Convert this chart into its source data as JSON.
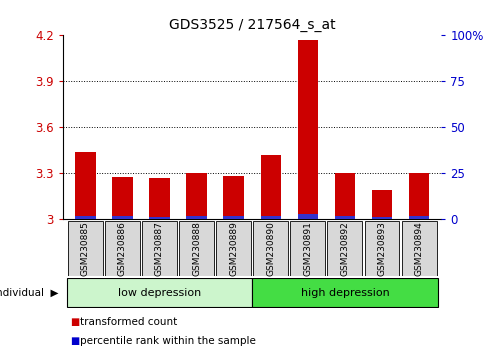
{
  "title": "GDS3525 / 217564_s_at",
  "categories": [
    "GSM230885",
    "GSM230886",
    "GSM230887",
    "GSM230888",
    "GSM230889",
    "GSM230890",
    "GSM230891",
    "GSM230892",
    "GSM230893",
    "GSM230894"
  ],
  "red_values": [
    3.44,
    3.28,
    3.27,
    3.3,
    3.285,
    3.42,
    4.17,
    3.305,
    3.19,
    3.305
  ],
  "blue_values": [
    0.025,
    0.022,
    0.018,
    0.022,
    0.02,
    0.024,
    0.038,
    0.025,
    0.018,
    0.022
  ],
  "base": 3.0,
  "ylim": [
    3.0,
    4.2
  ],
  "yticks_left": [
    3.0,
    3.3,
    3.6,
    3.9,
    4.2
  ],
  "ytick_labels_left": [
    "3",
    "3.3",
    "3.6",
    "3.9",
    "4.2"
  ],
  "yticks_right_pos": [
    3.0,
    3.3,
    3.6,
    3.9,
    4.2
  ],
  "ytick_labels_right": [
    "0",
    "25",
    "50",
    "75",
    "100%"
  ],
  "groups": [
    {
      "label": "low depression",
      "start": 0,
      "end": 5,
      "color": "#ccf5cc"
    },
    {
      "label": "high depression",
      "start": 5,
      "end": 10,
      "color": "#44dd44"
    }
  ],
  "group_label_prefix": "individual",
  "legend_items": [
    {
      "label": "transformed count",
      "color": "#cc0000"
    },
    {
      "label": "percentile rank within the sample",
      "color": "#0000cc"
    }
  ],
  "bar_width": 0.55,
  "red_color": "#cc0000",
  "blue_color": "#3333cc",
  "bg_color": "#ffffff",
  "tick_color_left": "#cc0000",
  "tick_color_right": "#0000cc",
  "xlabel_bg": "#d8d8d8"
}
